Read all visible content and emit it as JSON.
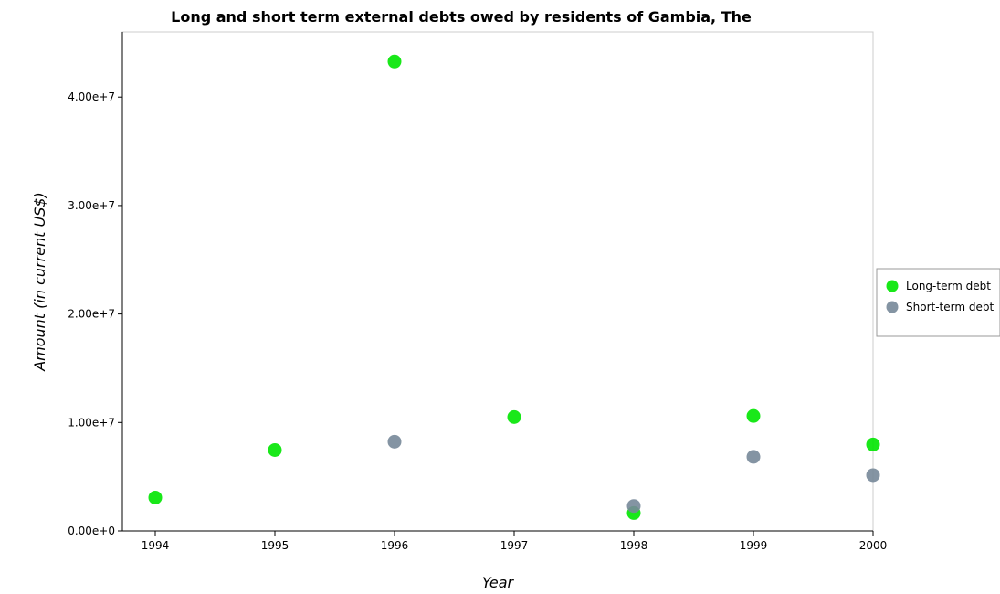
{
  "chart_data": {
    "type": "scatter",
    "title": "Long and short term external debts owed by residents of Gambia, The",
    "xlabel": "Year",
    "ylabel": "Amount (in current US$)",
    "categories": [
      "1994",
      "1995",
      "1996",
      "1997",
      "1998",
      "1999",
      "2000"
    ],
    "ylim": [
      0,
      46000000
    ],
    "yticks": [
      0,
      10000000,
      20000000,
      30000000,
      40000000
    ],
    "ytick_labels": [
      "0.00e+0",
      "1.00e+7",
      "2.00e+7",
      "3.00e+7",
      "4.00e+7"
    ],
    "grid": false,
    "legend_position": "right",
    "series": [
      {
        "name": "Long-term debt",
        "color": "#00e600",
        "values": [
          3080000,
          7460000,
          43280000,
          10500000,
          1650000,
          10600000,
          7970000
        ]
      },
      {
        "name": "Short-term debt",
        "color": "#778899",
        "values": [
          0,
          0,
          8230000,
          0,
          2300000,
          6830000,
          5140000
        ]
      }
    ]
  }
}
